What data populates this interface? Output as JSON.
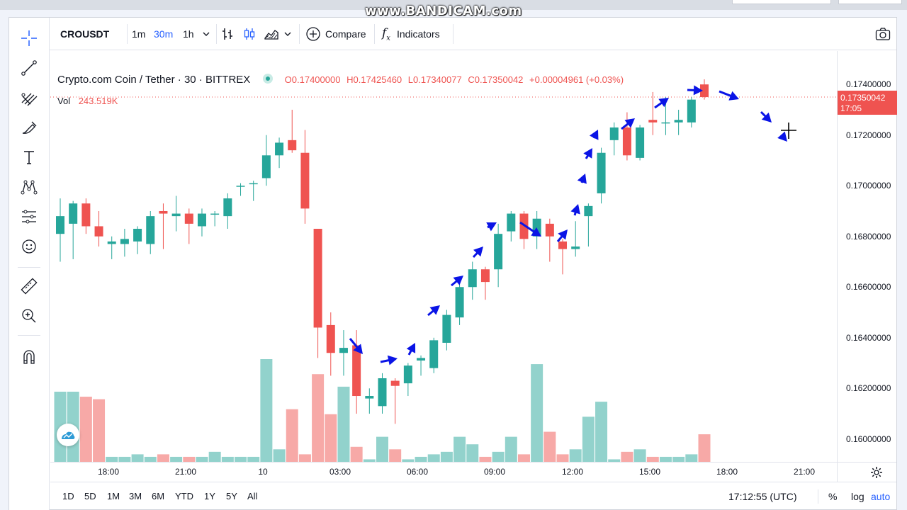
{
  "overlay": {
    "watermark": "www.BANDICAM.com"
  },
  "toolbar": {
    "symbol": "CROUSDT",
    "intervals": [
      {
        "label": "1m",
        "active": false
      },
      {
        "label": "30m",
        "active": true
      },
      {
        "label": "1h",
        "active": false
      }
    ],
    "interval_dropdown_icon": "chevron-down-icon",
    "chart_type_icons": [
      "bars-icon",
      "candles-icon",
      "area-icon"
    ],
    "compare_label": "Compare",
    "indicators_label": "Indicators",
    "screenshot_icon": "camera-icon"
  },
  "left_toolbar": {
    "icons": [
      "crosshair-icon",
      "trend-line-icon",
      "fib-icon",
      "brush-icon",
      "text-icon",
      "pattern-icon",
      "forecast-icon",
      "emoji-icon",
      "ruler-icon",
      "zoom-in-icon",
      "magnet-icon"
    ]
  },
  "legend": {
    "title": "Crypto.com Coin / Tether · 30 · BITTREX",
    "open": "O0.17400000",
    "high": "H0.17425460",
    "low": "L0.17340077",
    "close": "C0.17350042",
    "change": "+0.00004961 (+0.03%)",
    "vol_label": "Vol",
    "vol_value": "243.519K"
  },
  "price_axis": {
    "ticks": [
      "0.17400000",
      "0.17200000",
      "0.17000000",
      "0.16800000",
      "0.16600000",
      "0.16400000",
      "0.16200000",
      "0.16000000"
    ],
    "current_price": "0.17350042",
    "countdown": "17:05"
  },
  "time_axis": {
    "ticks": [
      "18:00",
      "21:00",
      "10",
      "03:00",
      "06:00",
      "09:00",
      "12:00",
      "15:00",
      "18:00",
      "21:00"
    ]
  },
  "bottom_bar": {
    "ranges": [
      "1D",
      "5D",
      "1M",
      "3M",
      "6M",
      "YTD",
      "1Y",
      "5Y",
      "All"
    ],
    "clock": "17:12:55 (UTC)",
    "percent_label": "%",
    "log_label": "log",
    "auto_label": "auto"
  },
  "colors": {
    "up": "#26a69a",
    "down": "#ef5350",
    "arrows": "#0a14e6",
    "accent": "#2962ff"
  },
  "chart_data": {
    "type": "candlestick",
    "interval": "30",
    "candles": [
      {
        "t": "16:00",
        "o": 0.1681,
        "h": 0.1695,
        "l": 0.167,
        "c": 0.1688,
        "v": 28
      },
      {
        "t": "16:30",
        "o": 0.1685,
        "h": 0.1694,
        "l": 0.1671,
        "c": 0.1693,
        "v": 28
      },
      {
        "t": "17:00",
        "o": 0.1693,
        "h": 0.1695,
        "l": 0.1681,
        "c": 0.1684,
        "v": 26
      },
      {
        "t": "17:30",
        "o": 0.1684,
        "h": 0.169,
        "l": 0.1676,
        "c": 0.168,
        "v": 25
      },
      {
        "t": "18:00",
        "o": 0.1677,
        "h": 0.168,
        "l": 0.1671,
        "c": 0.1678,
        "v": 2
      },
      {
        "t": "18:30",
        "o": 0.1677,
        "h": 0.1683,
        "l": 0.1672,
        "c": 0.1679,
        "v": 2
      },
      {
        "t": "19:00",
        "o": 0.1678,
        "h": 0.1684,
        "l": 0.1673,
        "c": 0.1683,
        "v": 3
      },
      {
        "t": "19:30",
        "o": 0.1677,
        "h": 0.169,
        "l": 0.1673,
        "c": 0.1688,
        "v": 2
      },
      {
        "t": "20:00",
        "o": 0.169,
        "h": 0.1693,
        "l": 0.1675,
        "c": 0.1689,
        "v": 3
      },
      {
        "t": "20:30",
        "o": 0.1688,
        "h": 0.1696,
        "l": 0.1682,
        "c": 0.1689,
        "v": 2
      },
      {
        "t": "21:00",
        "o": 0.1689,
        "h": 0.1691,
        "l": 0.1677,
        "c": 0.1685,
        "v": 2
      },
      {
        "t": "21:30",
        "o": 0.1684,
        "h": 0.1691,
        "l": 0.168,
        "c": 0.1689,
        "v": 2
      },
      {
        "t": "22:00",
        "o": 0.1689,
        "h": 0.169,
        "l": 0.1684,
        "c": 0.1689,
        "v": 4
      },
      {
        "t": "22:30",
        "o": 0.1688,
        "h": 0.1697,
        "l": 0.1683,
        "c": 0.1695,
        "v": 2
      },
      {
        "t": "23:00",
        "o": 0.17,
        "h": 0.1701,
        "l": 0.1696,
        "c": 0.17,
        "v": 2
      },
      {
        "t": "23:30",
        "o": 0.1701,
        "h": 0.1702,
        "l": 0.1694,
        "c": 0.1701,
        "v": 2
      },
      {
        "t": "00:00",
        "o": 0.1703,
        "h": 0.172,
        "l": 0.17,
        "c": 0.1712,
        "v": 41
      },
      {
        "t": "00:30",
        "o": 0.1712,
        "h": 0.1719,
        "l": 0.1707,
        "c": 0.1717,
        "v": 5
      },
      {
        "t": "01:00",
        "o": 0.1718,
        "h": 0.173,
        "l": 0.1713,
        "c": 0.1714,
        "v": 21
      },
      {
        "t": "01:30",
        "o": 0.1713,
        "h": 0.1722,
        "l": 0.1685,
        "c": 0.1691,
        "v": 3
      },
      {
        "t": "02:00",
        "o": 0.1683,
        "h": 0.1683,
        "l": 0.1632,
        "c": 0.1644,
        "v": 35
      },
      {
        "t": "02:30",
        "o": 0.1645,
        "h": 0.165,
        "l": 0.1625,
        "c": 0.1634,
        "v": 19
      },
      {
        "t": "03:00",
        "o": 0.1634,
        "h": 0.1643,
        "l": 0.1625,
        "c": 0.1636,
        "v": 30
      },
      {
        "t": "03:30",
        "o": 0.1637,
        "h": 0.1643,
        "l": 0.161,
        "c": 0.1617,
        "v": 6
      },
      {
        "t": "04:00",
        "o": 0.1616,
        "h": 0.162,
        "l": 0.161,
        "c": 0.1617,
        "v": 1
      },
      {
        "t": "04:30",
        "o": 0.1613,
        "h": 0.1626,
        "l": 0.161,
        "c": 0.1624,
        "v": 10
      },
      {
        "t": "05:00",
        "o": 0.1623,
        "h": 0.1624,
        "l": 0.1606,
        "c": 0.1621,
        "v": 5
      },
      {
        "t": "05:30",
        "o": 0.1622,
        "h": 0.163,
        "l": 0.1617,
        "c": 0.1629,
        "v": 1
      },
      {
        "t": "06:00",
        "o": 0.1631,
        "h": 0.1633,
        "l": 0.1625,
        "c": 0.1632,
        "v": 2
      },
      {
        "t": "06:30",
        "o": 0.1628,
        "h": 0.164,
        "l": 0.1626,
        "c": 0.1639,
        "v": 3
      },
      {
        "t": "07:00",
        "o": 0.1638,
        "h": 0.1651,
        "l": 0.1635,
        "c": 0.1649,
        "v": 4
      },
      {
        "t": "07:30",
        "o": 0.1648,
        "h": 0.1662,
        "l": 0.1645,
        "c": 0.166,
        "v": 10
      },
      {
        "t": "08:00",
        "o": 0.166,
        "h": 0.167,
        "l": 0.1655,
        "c": 0.1667,
        "v": 7
      },
      {
        "t": "08:30",
        "o": 0.1667,
        "h": 0.1668,
        "l": 0.1655,
        "c": 0.1662,
        "v": 2
      },
      {
        "t": "09:00",
        "o": 0.1667,
        "h": 0.1685,
        "l": 0.166,
        "c": 0.1681,
        "v": 4
      },
      {
        "t": "09:30",
        "o": 0.1682,
        "h": 0.169,
        "l": 0.1678,
        "c": 0.1689,
        "v": 10
      },
      {
        "t": "10:00",
        "o": 0.1689,
        "h": 0.169,
        "l": 0.1675,
        "c": 0.1679,
        "v": 3
      },
      {
        "t": "10:30",
        "o": 0.168,
        "h": 0.169,
        "l": 0.1675,
        "c": 0.1687,
        "v": 39
      },
      {
        "t": "11:00",
        "o": 0.1685,
        "h": 0.1687,
        "l": 0.167,
        "c": 0.168,
        "v": 12
      },
      {
        "t": "11:30",
        "o": 0.1678,
        "h": 0.1679,
        "l": 0.1665,
        "c": 0.1675,
        "v": 3
      },
      {
        "t": "12:00",
        "o": 0.1675,
        "h": 0.1686,
        "l": 0.1672,
        "c": 0.1676,
        "v": 5
      },
      {
        "t": "12:30",
        "o": 0.1688,
        "h": 0.1693,
        "l": 0.1676,
        "c": 0.1692,
        "v": 18
      },
      {
        "t": "13:00",
        "o": 0.1697,
        "h": 0.1715,
        "l": 0.1693,
        "c": 0.1713,
        "v": 24
      },
      {
        "t": "13:30",
        "o": 0.1718,
        "h": 0.1725,
        "l": 0.1712,
        "c": 0.1723,
        "v": 1
      },
      {
        "t": "14:00",
        "o": 0.1723,
        "h": 0.1729,
        "l": 0.171,
        "c": 0.1712,
        "v": 4
      },
      {
        "t": "14:30",
        "o": 0.1711,
        "h": 0.1724,
        "l": 0.171,
        "c": 0.1723,
        "v": 5
      },
      {
        "t": "15:00",
        "o": 0.1726,
        "h": 0.1737,
        "l": 0.172,
        "c": 0.1725,
        "v": 2
      },
      {
        "t": "15:30",
        "o": 0.1725,
        "h": 0.1735,
        "l": 0.172,
        "c": 0.1725,
        "v": 2
      },
      {
        "t": "16:00",
        "o": 0.1725,
        "h": 0.173,
        "l": 0.172,
        "c": 0.1726,
        "v": 2
      },
      {
        "t": "16:30",
        "o": 0.1725,
        "h": 0.1735,
        "l": 0.1723,
        "c": 0.1734,
        "v": 3
      },
      {
        "t": "17:00",
        "o": 0.174,
        "h": 0.1742,
        "l": 0.1734,
        "c": 0.1735,
        "v": 11
      }
    ],
    "ylim": [
      0.1591,
      0.1749
    ],
    "grid": false
  }
}
